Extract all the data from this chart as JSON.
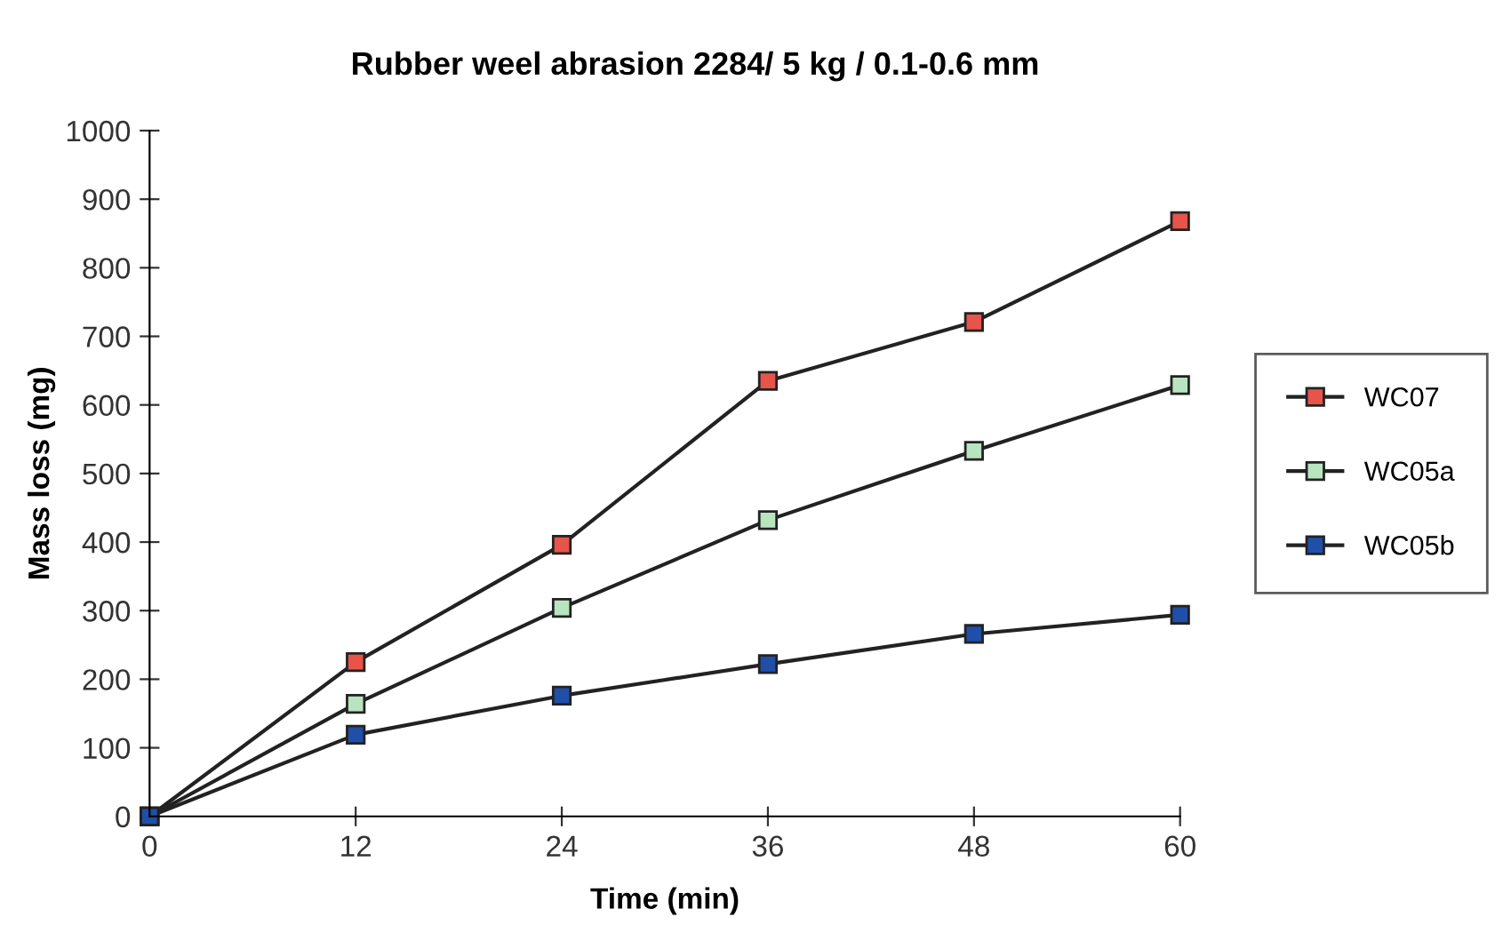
{
  "chart_data": {
    "type": "line",
    "title": "Rubber weel abrasion 2284/ 5 kg / 0.1-0.6 mm",
    "xlabel": "Time (min)",
    "ylabel": "Mass loss (mg)",
    "x": [
      0,
      12,
      24,
      36,
      48,
      60
    ],
    "series": [
      {
        "name": "WC07",
        "color": "#e8534a",
        "values": [
          0,
          225,
          396,
          635,
          721,
          868
        ]
      },
      {
        "name": "WC05a",
        "color": "#b8e4c0",
        "values": [
          0,
          164,
          304,
          432,
          533,
          629
        ]
      },
      {
        "name": "WC05b",
        "color": "#1f4fa8",
        "values": [
          0,
          119,
          176,
          222,
          266,
          294
        ]
      }
    ],
    "xlim": [
      0,
      60
    ],
    "xticks": [
      0,
      12,
      24,
      36,
      48,
      60
    ],
    "ylim": [
      0,
      1000
    ],
    "yticks": [
      0,
      100,
      200,
      300,
      400,
      500,
      600,
      700,
      800,
      900,
      1000
    ],
    "grid": false,
    "legend": "right",
    "marker": "square",
    "line_style": "solid"
  }
}
